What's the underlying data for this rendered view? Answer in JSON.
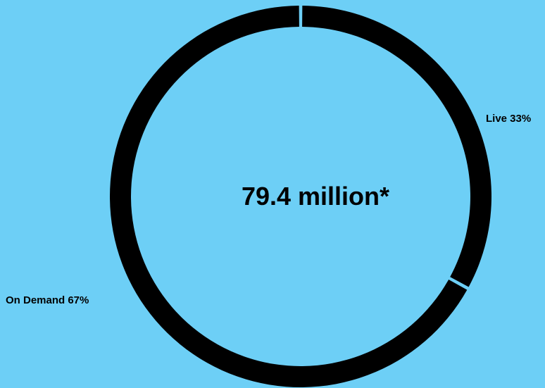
{
  "chart_data": {
    "type": "pie",
    "style": "donut",
    "center_text": "79.4 million*",
    "categories": [
      "Live",
      "On Demand"
    ],
    "values": [
      33,
      67
    ],
    "unit": "%",
    "labels": [
      "Live 33%",
      "On Demand 67%"
    ],
    "start_angle_deg": 0,
    "direction": "clockwise",
    "colors": {
      "background": "#6dcff6",
      "ring": "#000000",
      "separator": "#6dcff6",
      "text": "#000000"
    }
  }
}
